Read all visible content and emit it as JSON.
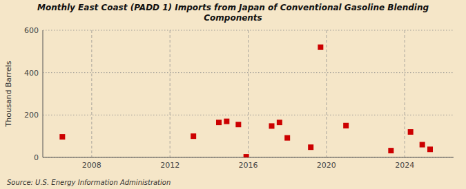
{
  "chart_data": {
    "type": "scatter",
    "title": "Monthly East Coast (PADD 1) Imports from Japan of Conventional Gasoline Blending\nComponents",
    "ylabel": "Thousand Barrels",
    "annotations": [
      "Source: U.S. Energy Information Administration"
    ],
    "x": [
      2006.5,
      2013.2,
      2014.5,
      2014.9,
      2015.5,
      2015.9,
      2017.2,
      2017.6,
      2018.0,
      2019.2,
      2019.7,
      2021.0,
      2023.3,
      2024.3,
      2024.9,
      2025.3
    ],
    "values": [
      97,
      100,
      165,
      170,
      155,
      3,
      148,
      165,
      92,
      48,
      520,
      150,
      32,
      120,
      60,
      38
    ],
    "color": "#cc0000",
    "marker": "square",
    "xlim": [
      2005.5,
      2026.5
    ],
    "ylim": [
      0,
      600
    ],
    "xticks": [
      2008,
      2012,
      2016,
      2020,
      2024
    ],
    "yticks": [
      0,
      200,
      400,
      600
    ],
    "grid": true
  }
}
